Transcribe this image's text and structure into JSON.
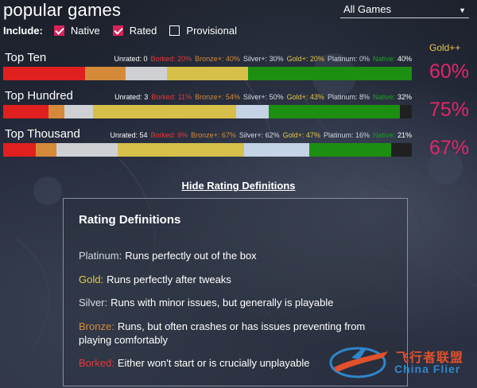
{
  "page": {
    "title": "popular games",
    "filter_dropdown": {
      "selected": "All Games"
    }
  },
  "include": {
    "label": "Include:",
    "options": [
      {
        "label": "Native",
        "checked": true
      },
      {
        "label": "Rated",
        "checked": true
      },
      {
        "label": "Provisional",
        "checked": false
      }
    ]
  },
  "gold_plus_header": "Gold++",
  "tiers": [
    {
      "name": "Top Ten",
      "stats": {
        "unrated": "Unrated: 0",
        "borked": "Borked: 20%",
        "bronze": "Bronze+: 40%",
        "silver": "Silver+: 30%",
        "gold": "Gold+: 20%",
        "platinum": "Platinum: 0%",
        "native_label": "Native:",
        "native_value": "40%"
      },
      "bar_segments_percent": {
        "red": 20,
        "orange": 10,
        "silver": 10,
        "gold": 20,
        "platinum": 0,
        "green": 40,
        "dark": 0
      },
      "gold_plus": "60%"
    },
    {
      "name": "Top Hundred",
      "stats": {
        "unrated": "Unrated: 3",
        "borked": "Borked: 11%",
        "bronze": "Bronze+: 54%",
        "silver": "Silver+: 50%",
        "gold": "Gold+: 43%",
        "platinum": "Platinum: 8%",
        "native_label": "Native:",
        "native_value": "32%"
      },
      "bar_segments_percent": {
        "red": 11,
        "orange": 4,
        "silver": 7,
        "gold": 35,
        "platinum": 8,
        "green": 32,
        "dark": 3
      },
      "gold_plus": "75%"
    },
    {
      "name": "Top Thousand",
      "stats": {
        "unrated": "Unrated: 54",
        "borked": "Borked: 9%",
        "bronze": "Bronze+: 67%",
        "silver": "Silver+: 62%",
        "gold": "Gold+: 47%",
        "platinum": "Platinum: 16%",
        "native_label": "Native:",
        "native_value": "21%"
      },
      "bar_segments_percent": {
        "red": 8,
        "orange": 5,
        "silver": 15,
        "gold": 31,
        "platinum": 16,
        "green": 20,
        "dark": 5
      },
      "gold_plus": "67%"
    }
  ],
  "hide_link": "Hide Rating Definitions",
  "definitions": {
    "title": "Rating Definitions",
    "items": [
      {
        "key": "Platinum:",
        "text": "Runs perfectly out of the box",
        "color": "#cfd6e0"
      },
      {
        "key": "Gold:",
        "text": "Runs perfectly after tweaks",
        "color": "#e6c84a"
      },
      {
        "key": "Silver:",
        "text": "Runs with minor issues, but generally is playable",
        "color": "#d8dbe2"
      },
      {
        "key": "Bronze:",
        "text": "Runs, but often crashes or has issues preventing from playing comfortably",
        "color": "#d58a3a"
      },
      {
        "key": "Borked:",
        "text": "Either won't start or is crucially unplayable",
        "color": "#e23b3b"
      }
    ]
  },
  "watermark": {
    "cn": "飞行者联盟",
    "en": "China Flier"
  },
  "colors": {
    "accent_pink": "#e2266a",
    "checkbox_checked": "#d9225a",
    "native_green": "#1c8f12",
    "borked_red": "#e0201f",
    "bronze_orange": "#d58a3a",
    "silver_gray": "#cfd0d4",
    "gold_yellow": "#d7c04a",
    "platinum_blue": "#c4d3e6"
  }
}
